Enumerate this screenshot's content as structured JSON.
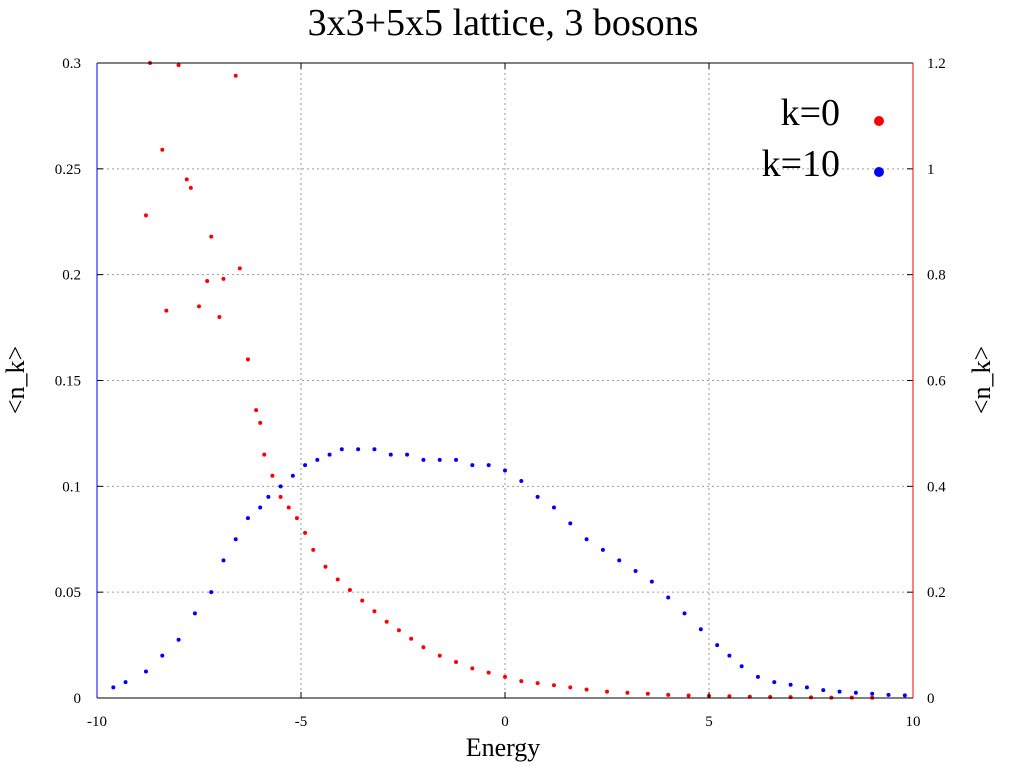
{
  "chart_data": {
    "type": "scatter",
    "title": "3x3+5x5 lattice, 3 bosons",
    "xlabel": "Energy",
    "ylabel_left": "<n_k>",
    "ylabel_right": "<n_k>",
    "xlim": [
      -10,
      10
    ],
    "ylim_left": [
      0,
      0.3
    ],
    "ylim_right": [
      0,
      1.2
    ],
    "xticks": [
      "-10",
      "-5",
      "0",
      "5",
      "10"
    ],
    "yticks_left": [
      "0",
      "0.05",
      "0.1",
      "0.15",
      "0.2",
      "0.25",
      "0.3"
    ],
    "yticks_right": [
      "0",
      "0.2",
      "0.4",
      "0.6",
      "0.8",
      "1",
      "1.2"
    ],
    "grid": true,
    "legend_position": "top-right",
    "left_axis_color": "#0000ff",
    "right_axis_color": "#ff0000",
    "series": [
      {
        "name": "k=0",
        "color": "#ff0000",
        "axis": "left",
        "description": "red points, plotted against left axis",
        "x": [
          -8.8,
          -8.7,
          -8.4,
          -8.3,
          -8.0,
          -7.8,
          -7.7,
          -7.5,
          -7.3,
          -7.2,
          -7.0,
          -6.9,
          -6.6,
          -6.5,
          -6.3,
          -6.1,
          -6.0,
          -5.9,
          -5.7,
          -5.5,
          -5.3,
          -5.1,
          -4.9,
          -4.7,
          -4.4,
          -4.1,
          -3.8,
          -3.5,
          -3.2,
          -2.9,
          -2.6,
          -2.3,
          -2.0,
          -1.6,
          -1.2,
          -0.8,
          -0.4,
          0.0,
          0.4,
          0.8,
          1.2,
          1.6,
          2.0,
          2.5,
          3.0,
          3.5,
          4.0,
          4.5,
          5.0,
          5.5,
          6.0,
          6.5,
          7.0,
          7.5,
          8.0,
          8.5,
          9.0
        ],
        "y": [
          0.228,
          0.3,
          0.259,
          0.183,
          0.299,
          0.245,
          0.241,
          0.185,
          0.197,
          0.218,
          0.18,
          0.198,
          0.294,
          0.203,
          0.16,
          0.136,
          0.13,
          0.115,
          0.105,
          0.095,
          0.09,
          0.085,
          0.078,
          0.07,
          0.062,
          0.056,
          0.051,
          0.046,
          0.041,
          0.036,
          0.032,
          0.028,
          0.024,
          0.02,
          0.017,
          0.014,
          0.012,
          0.01,
          0.008,
          0.007,
          0.006,
          0.005,
          0.004,
          0.003,
          0.0025,
          0.002,
          0.0015,
          0.0012,
          0.001,
          0.0008,
          0.0006,
          0.0005,
          0.0004,
          0.0003,
          0.0002,
          0.0002,
          0.0001
        ]
      },
      {
        "name": "k=10",
        "color": "#0000ff",
        "axis": "right",
        "description": "blue points, plotted against right axis",
        "x": [
          -9.6,
          -9.3,
          -8.8,
          -8.4,
          -8.0,
          -7.6,
          -7.2,
          -6.9,
          -6.6,
          -6.3,
          -6.0,
          -5.8,
          -5.5,
          -5.2,
          -4.9,
          -4.6,
          -4.3,
          -4.0,
          -3.6,
          -3.2,
          -2.8,
          -2.4,
          -2.0,
          -1.6,
          -1.2,
          -0.8,
          -0.4,
          0.0,
          0.4,
          0.8,
          1.2,
          1.6,
          2.0,
          2.4,
          2.8,
          3.2,
          3.6,
          4.0,
          4.4,
          4.8,
          5.2,
          5.5,
          5.8,
          6.2,
          6.6,
          7.0,
          7.4,
          7.8,
          8.2,
          8.6,
          9.0,
          9.4,
          9.8
        ],
        "y": [
          0.02,
          0.03,
          0.05,
          0.08,
          0.11,
          0.16,
          0.2,
          0.26,
          0.3,
          0.34,
          0.36,
          0.38,
          0.4,
          0.42,
          0.44,
          0.45,
          0.46,
          0.47,
          0.47,
          0.47,
          0.46,
          0.46,
          0.45,
          0.45,
          0.45,
          0.44,
          0.44,
          0.43,
          0.41,
          0.38,
          0.36,
          0.33,
          0.3,
          0.28,
          0.26,
          0.24,
          0.22,
          0.19,
          0.16,
          0.13,
          0.1,
          0.08,
          0.06,
          0.04,
          0.03,
          0.025,
          0.02,
          0.015,
          0.012,
          0.01,
          0.008,
          0.006,
          0.005
        ]
      }
    ]
  }
}
